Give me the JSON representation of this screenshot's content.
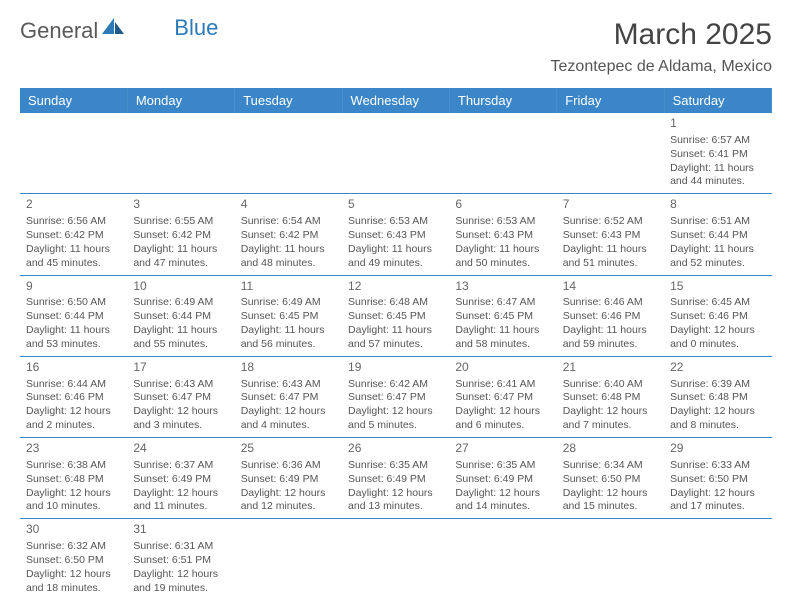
{
  "brand": {
    "part1": "General",
    "part2": "Blue"
  },
  "title": "March 2025",
  "location": "Tezontepec de Aldama, Mexico",
  "colors": {
    "header_bg": "#3a86c8",
    "header_fg": "#ffffff",
    "cell_border": "#3a86c8",
    "text": "#555555",
    "brand_blue": "#2c7bb8",
    "brand_gray": "#5a5a5a"
  },
  "weekdays": [
    "Sunday",
    "Monday",
    "Tuesday",
    "Wednesday",
    "Thursday",
    "Friday",
    "Saturday"
  ],
  "weeks": [
    [
      null,
      null,
      null,
      null,
      null,
      null,
      {
        "n": "1",
        "sr": "Sunrise: 6:57 AM",
        "ss": "Sunset: 6:41 PM",
        "dl": "Daylight: 11 hours and 44 minutes."
      }
    ],
    [
      {
        "n": "2",
        "sr": "Sunrise: 6:56 AM",
        "ss": "Sunset: 6:42 PM",
        "dl": "Daylight: 11 hours and 45 minutes."
      },
      {
        "n": "3",
        "sr": "Sunrise: 6:55 AM",
        "ss": "Sunset: 6:42 PM",
        "dl": "Daylight: 11 hours and 47 minutes."
      },
      {
        "n": "4",
        "sr": "Sunrise: 6:54 AM",
        "ss": "Sunset: 6:42 PM",
        "dl": "Daylight: 11 hours and 48 minutes."
      },
      {
        "n": "5",
        "sr": "Sunrise: 6:53 AM",
        "ss": "Sunset: 6:43 PM",
        "dl": "Daylight: 11 hours and 49 minutes."
      },
      {
        "n": "6",
        "sr": "Sunrise: 6:53 AM",
        "ss": "Sunset: 6:43 PM",
        "dl": "Daylight: 11 hours and 50 minutes."
      },
      {
        "n": "7",
        "sr": "Sunrise: 6:52 AM",
        "ss": "Sunset: 6:43 PM",
        "dl": "Daylight: 11 hours and 51 minutes."
      },
      {
        "n": "8",
        "sr": "Sunrise: 6:51 AM",
        "ss": "Sunset: 6:44 PM",
        "dl": "Daylight: 11 hours and 52 minutes."
      }
    ],
    [
      {
        "n": "9",
        "sr": "Sunrise: 6:50 AM",
        "ss": "Sunset: 6:44 PM",
        "dl": "Daylight: 11 hours and 53 minutes."
      },
      {
        "n": "10",
        "sr": "Sunrise: 6:49 AM",
        "ss": "Sunset: 6:44 PM",
        "dl": "Daylight: 11 hours and 55 minutes."
      },
      {
        "n": "11",
        "sr": "Sunrise: 6:49 AM",
        "ss": "Sunset: 6:45 PM",
        "dl": "Daylight: 11 hours and 56 minutes."
      },
      {
        "n": "12",
        "sr": "Sunrise: 6:48 AM",
        "ss": "Sunset: 6:45 PM",
        "dl": "Daylight: 11 hours and 57 minutes."
      },
      {
        "n": "13",
        "sr": "Sunrise: 6:47 AM",
        "ss": "Sunset: 6:45 PM",
        "dl": "Daylight: 11 hours and 58 minutes."
      },
      {
        "n": "14",
        "sr": "Sunrise: 6:46 AM",
        "ss": "Sunset: 6:46 PM",
        "dl": "Daylight: 11 hours and 59 minutes."
      },
      {
        "n": "15",
        "sr": "Sunrise: 6:45 AM",
        "ss": "Sunset: 6:46 PM",
        "dl": "Daylight: 12 hours and 0 minutes."
      }
    ],
    [
      {
        "n": "16",
        "sr": "Sunrise: 6:44 AM",
        "ss": "Sunset: 6:46 PM",
        "dl": "Daylight: 12 hours and 2 minutes."
      },
      {
        "n": "17",
        "sr": "Sunrise: 6:43 AM",
        "ss": "Sunset: 6:47 PM",
        "dl": "Daylight: 12 hours and 3 minutes."
      },
      {
        "n": "18",
        "sr": "Sunrise: 6:43 AM",
        "ss": "Sunset: 6:47 PM",
        "dl": "Daylight: 12 hours and 4 minutes."
      },
      {
        "n": "19",
        "sr": "Sunrise: 6:42 AM",
        "ss": "Sunset: 6:47 PM",
        "dl": "Daylight: 12 hours and 5 minutes."
      },
      {
        "n": "20",
        "sr": "Sunrise: 6:41 AM",
        "ss": "Sunset: 6:47 PM",
        "dl": "Daylight: 12 hours and 6 minutes."
      },
      {
        "n": "21",
        "sr": "Sunrise: 6:40 AM",
        "ss": "Sunset: 6:48 PM",
        "dl": "Daylight: 12 hours and 7 minutes."
      },
      {
        "n": "22",
        "sr": "Sunrise: 6:39 AM",
        "ss": "Sunset: 6:48 PM",
        "dl": "Daylight: 12 hours and 8 minutes."
      }
    ],
    [
      {
        "n": "23",
        "sr": "Sunrise: 6:38 AM",
        "ss": "Sunset: 6:48 PM",
        "dl": "Daylight: 12 hours and 10 minutes."
      },
      {
        "n": "24",
        "sr": "Sunrise: 6:37 AM",
        "ss": "Sunset: 6:49 PM",
        "dl": "Daylight: 12 hours and 11 minutes."
      },
      {
        "n": "25",
        "sr": "Sunrise: 6:36 AM",
        "ss": "Sunset: 6:49 PM",
        "dl": "Daylight: 12 hours and 12 minutes."
      },
      {
        "n": "26",
        "sr": "Sunrise: 6:35 AM",
        "ss": "Sunset: 6:49 PM",
        "dl": "Daylight: 12 hours and 13 minutes."
      },
      {
        "n": "27",
        "sr": "Sunrise: 6:35 AM",
        "ss": "Sunset: 6:49 PM",
        "dl": "Daylight: 12 hours and 14 minutes."
      },
      {
        "n": "28",
        "sr": "Sunrise: 6:34 AM",
        "ss": "Sunset: 6:50 PM",
        "dl": "Daylight: 12 hours and 15 minutes."
      },
      {
        "n": "29",
        "sr": "Sunrise: 6:33 AM",
        "ss": "Sunset: 6:50 PM",
        "dl": "Daylight: 12 hours and 17 minutes."
      }
    ],
    [
      {
        "n": "30",
        "sr": "Sunrise: 6:32 AM",
        "ss": "Sunset: 6:50 PM",
        "dl": "Daylight: 12 hours and 18 minutes."
      },
      {
        "n": "31",
        "sr": "Sunrise: 6:31 AM",
        "ss": "Sunset: 6:51 PM",
        "dl": "Daylight: 12 hours and 19 minutes."
      },
      null,
      null,
      null,
      null,
      null
    ]
  ]
}
